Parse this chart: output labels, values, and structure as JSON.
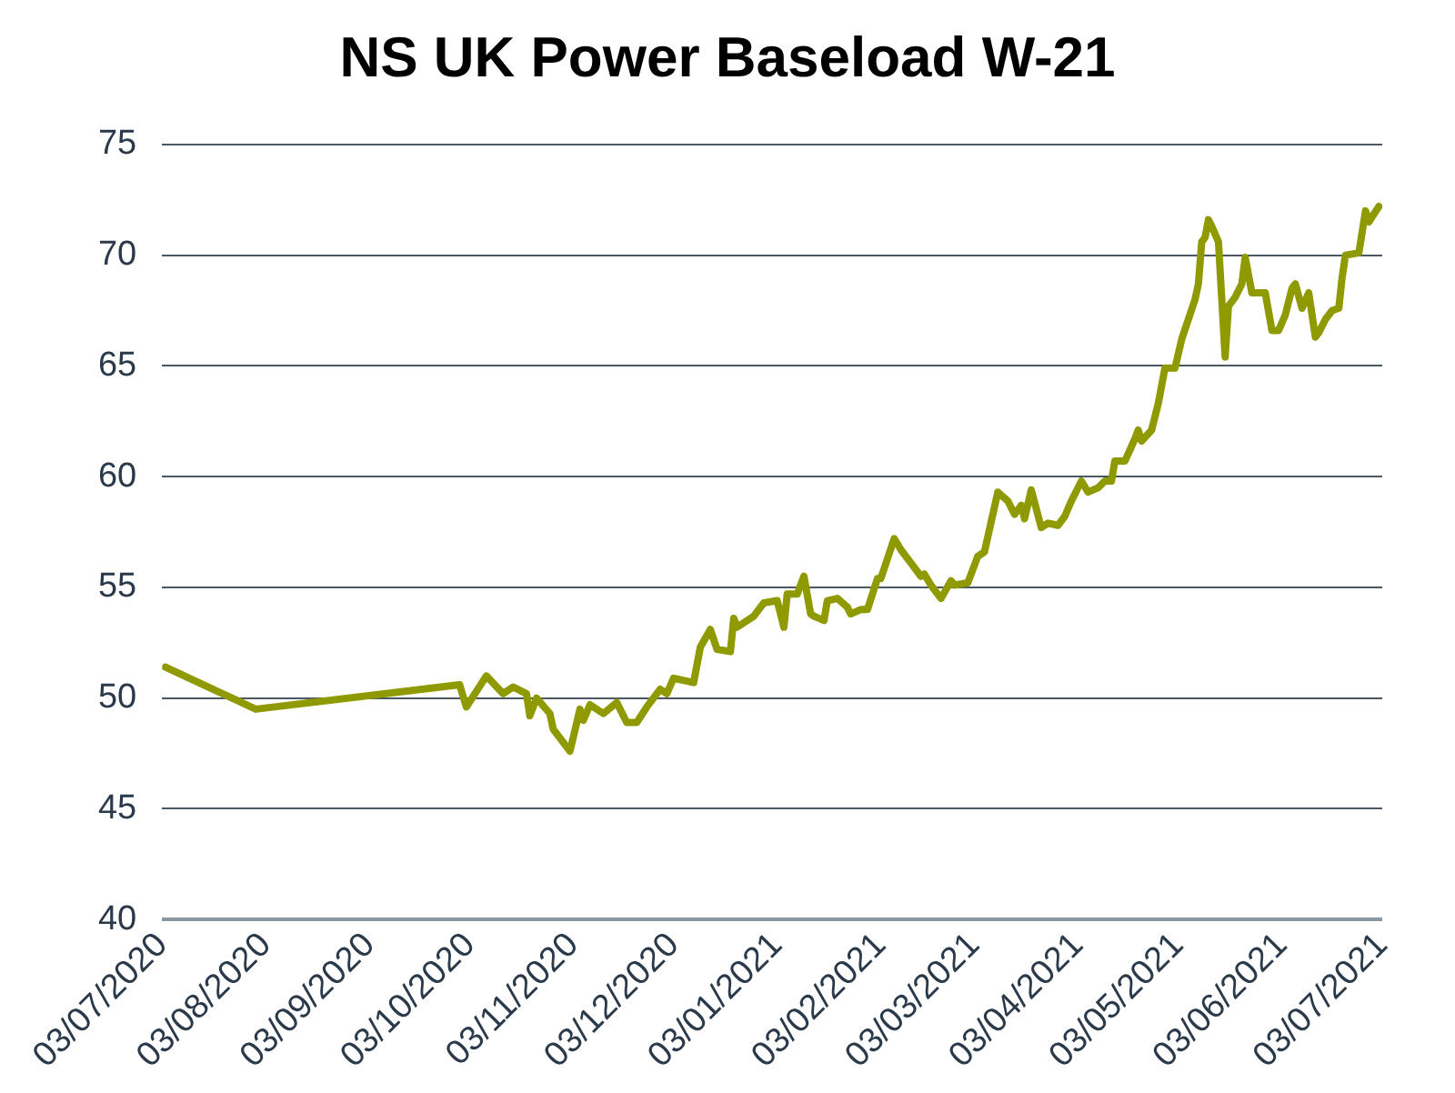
{
  "chart_data": {
    "type": "line",
    "title": "NS UK Power Baseload W-21",
    "x": [
      "2020-07-04",
      "2020-07-31",
      "2020-09-30",
      "2020-10-02",
      "2020-10-08",
      "2020-10-13",
      "2020-10-16",
      "2020-10-20",
      "2020-10-21",
      "2020-10-23",
      "2020-10-27",
      "2020-10-28",
      "2020-11-02",
      "2020-11-05",
      "2020-11-06",
      "2020-11-08",
      "2020-11-12",
      "2020-11-16",
      "2020-11-19",
      "2020-11-22",
      "2020-11-25",
      "2020-11-29",
      "2020-12-01",
      "2020-12-03",
      "2020-12-09",
      "2020-12-11",
      "2020-12-14",
      "2020-12-16",
      "2020-12-20",
      "2020-12-21",
      "2020-12-22",
      "2020-12-27",
      "2020-12-30",
      "2021-01-03",
      "2021-01-05",
      "2021-01-06",
      "2021-01-09",
      "2021-01-11",
      "2021-01-13",
      "2021-01-14",
      "2021-01-17",
      "2021-01-18",
      "2021-01-21",
      "2021-01-24",
      "2021-01-25",
      "2021-01-28",
      "2021-01-30",
      "2021-02-02",
      "2021-02-03",
      "2021-02-07",
      "2021-02-09",
      "2021-02-12",
      "2021-02-15",
      "2021-02-16",
      "2021-02-18",
      "2021-02-21",
      "2021-02-24",
      "2021-02-25",
      "2021-03-01",
      "2021-03-02",
      "2021-03-04",
      "2021-03-06",
      "2021-03-10",
      "2021-03-13",
      "2021-03-15",
      "2021-03-17",
      "2021-03-18",
      "2021-03-20",
      "2021-03-23",
      "2021-03-25",
      "2021-03-28",
      "2021-03-30",
      "2021-04-01",
      "2021-04-04",
      "2021-04-06",
      "2021-04-09",
      "2021-04-11",
      "2021-04-13",
      "2021-04-14",
      "2021-04-17",
      "2021-04-20",
      "2021-04-21",
      "2021-04-22",
      "2021-04-25",
      "2021-04-27",
      "2021-04-29",
      "2021-05-02",
      "2021-05-04",
      "2021-05-08",
      "2021-05-09",
      "2021-05-10",
      "2021-05-11",
      "2021-05-12",
      "2021-05-13",
      "2021-05-15",
      "2021-05-17",
      "2021-05-18",
      "2021-05-20",
      "2021-05-22",
      "2021-05-23",
      "2021-05-25",
      "2021-05-29",
      "2021-05-31",
      "2021-06-02",
      "2021-06-04",
      "2021-06-06",
      "2021-06-07",
      "2021-06-09",
      "2021-06-11",
      "2021-06-13",
      "2021-06-14",
      "2021-06-16",
      "2021-06-18",
      "2021-06-20",
      "2021-06-21",
      "2021-06-22",
      "2021-06-26",
      "2021-06-28",
      "2021-06-29",
      "2021-07-02"
    ],
    "series": [
      {
        "color": "#8f9a00",
        "values": [
          51.4,
          49.5,
          50.6,
          49.6,
          51.0,
          50.2,
          50.5,
          50.2,
          49.2,
          50.0,
          49.3,
          48.6,
          47.6,
          49.5,
          49.0,
          49.7,
          49.3,
          49.8,
          48.9,
          48.9,
          49.6,
          50.4,
          50.2,
          50.9,
          50.7,
          52.3,
          53.1,
          52.2,
          52.1,
          53.6,
          53.2,
          53.7,
          54.3,
          54.4,
          53.2,
          54.7,
          54.7,
          55.5,
          53.8,
          53.7,
          53.5,
          54.4,
          54.5,
          54.1,
          53.8,
          54.0,
          54.0,
          55.4,
          55.4,
          57.2,
          56.7,
          56.1,
          55.5,
          55.6,
          55.1,
          54.5,
          55.3,
          55.1,
          55.2,
          55.6,
          56.4,
          56.6,
          59.3,
          58.9,
          58.3,
          58.7,
          58.1,
          59.4,
          57.7,
          57.9,
          57.8,
          58.2,
          58.9,
          59.8,
          59.3,
          59.5,
          59.8,
          59.8,
          60.7,
          60.7,
          61.7,
          62.1,
          61.6,
          62.1,
          63.3,
          64.9,
          64.9,
          66.2,
          68.0,
          68.7,
          70.6,
          70.8,
          71.6,
          71.3,
          70.6,
          65.4,
          67.7,
          68.1,
          68.7,
          69.9,
          68.3,
          68.3,
          66.6,
          66.6,
          67.3,
          68.5,
          68.7,
          67.6,
          68.3,
          66.3,
          66.5,
          67.1,
          67.5,
          67.6,
          69.0,
          70.0,
          70.1,
          72.0,
          71.5,
          72.2
        ]
      }
    ],
    "xlim": [
      "2020-07-03",
      "2021-07-03"
    ],
    "xticks": [
      {
        "value": "2020-07-03",
        "label": "03/07/2020"
      },
      {
        "value": "2020-08-03",
        "label": "03/08/2020"
      },
      {
        "value": "2020-09-03",
        "label": "03/09/2020"
      },
      {
        "value": "2020-10-03",
        "label": "03/10/2020"
      },
      {
        "value": "2020-11-03",
        "label": "03/11/2020"
      },
      {
        "value": "2020-12-03",
        "label": "03/12/2020"
      },
      {
        "value": "2021-01-03",
        "label": "03/01/2021"
      },
      {
        "value": "2021-02-03",
        "label": "03/02/2021"
      },
      {
        "value": "2021-03-03",
        "label": "03/03/2021"
      },
      {
        "value": "2021-04-03",
        "label": "03/04/2021"
      },
      {
        "value": "2021-05-03",
        "label": "03/05/2021"
      },
      {
        "value": "2021-06-03",
        "label": "03/06/2021"
      },
      {
        "value": "2021-07-03",
        "label": "03/07/2021"
      }
    ],
    "ylim": [
      40,
      75
    ],
    "yticks": [
      40,
      45,
      50,
      55,
      60,
      65,
      70,
      75
    ],
    "grid": "y",
    "legend": false,
    "marker": "none",
    "line_style": "solid"
  }
}
